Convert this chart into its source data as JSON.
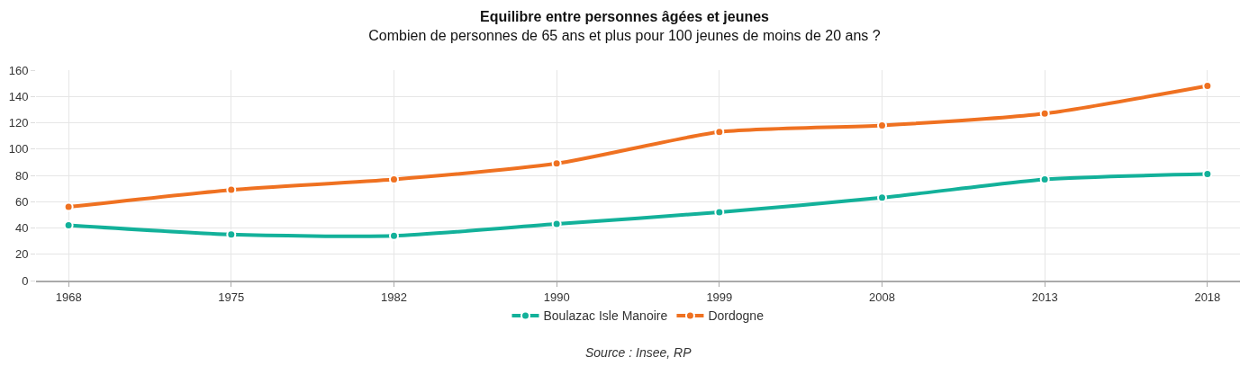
{
  "chart_data": {
    "type": "line",
    "title": "Equilibre entre personnes âgées et jeunes",
    "subtitle": "Combien de personnes de 65 ans et plus pour 100 jeunes de moins de 20 ans ?",
    "categories": [
      "1968",
      "1975",
      "1982",
      "1990",
      "1999",
      "2008",
      "2013",
      "2018"
    ],
    "series": [
      {
        "name": "Boulazac Isle Manoire",
        "color": "#13b19a",
        "values": [
          42,
          35,
          34,
          43,
          52,
          63,
          77,
          81
        ]
      },
      {
        "name": "Dordogne",
        "color": "#ef7121",
        "values": [
          56,
          69,
          77,
          89,
          113,
          118,
          127,
          148
        ]
      }
    ],
    "ylim": [
      0,
      160
    ],
    "yticks": [
      0,
      20,
      40,
      60,
      80,
      100,
      120,
      140,
      160
    ],
    "grid": true,
    "legend": "bottom",
    "marker": "circle",
    "line_style": "solid",
    "annotations": [
      "Source : Insee, RP"
    ]
  }
}
